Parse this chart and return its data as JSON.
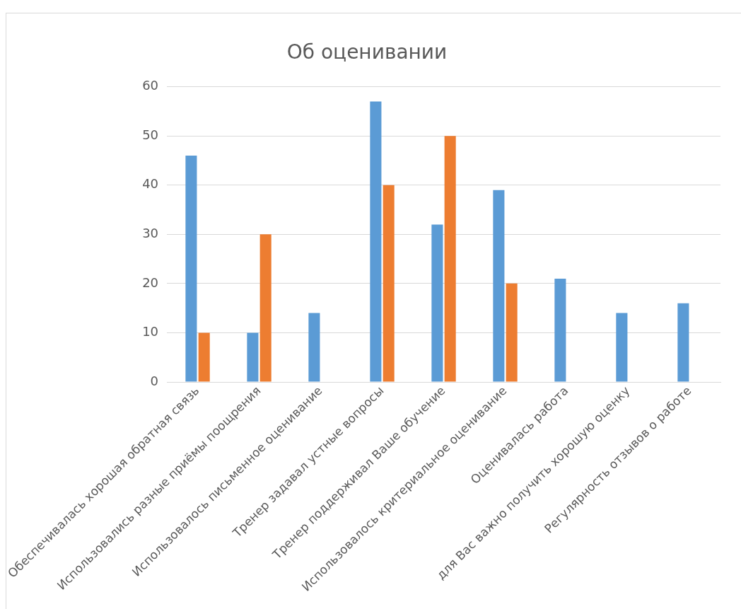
{
  "chart_data": {
    "type": "bar",
    "title": "Об оценивании",
    "categories": [
      "Обеспечивалась хорошая обратная связь",
      "Использовались разные приёмы поощрения",
      "Использовалось письменное оценивание",
      "Тренер задавал устные вопросы",
      "Тренер поддерживал Ваше обучение",
      "Использовалось критериальное оценивание",
      "Оценивалась работа",
      "для Вас важно получить хорошую оценку",
      "Регулярность отзывов о работе"
    ],
    "series": [
      {
        "color": "#5b9bd5",
        "values": [
          46,
          10,
          14,
          57,
          32,
          39,
          21,
          14,
          16
        ]
      },
      {
        "color": "#ed7d31",
        "values": [
          10,
          30,
          null,
          40,
          50,
          20,
          null,
          null,
          null
        ]
      }
    ],
    "ylim": [
      0,
      60
    ],
    "yticks": [
      0,
      10,
      20,
      30,
      40,
      50,
      60
    ],
    "grid": "y",
    "legend": false
  }
}
